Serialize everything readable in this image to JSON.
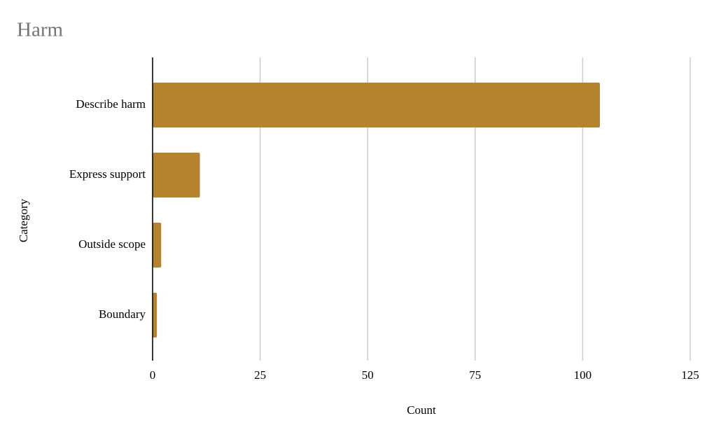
{
  "chart_data": {
    "type": "hbar",
    "title": "Harm",
    "categories": [
      "Describe harm",
      "Express support",
      "Outside scope",
      "Boundary"
    ],
    "values": [
      104,
      11,
      2,
      1
    ],
    "color": "#b5832e",
    "xlim": [
      0,
      125
    ],
    "xticks": [
      0,
      25,
      50,
      75,
      100,
      125
    ],
    "grid": true,
    "x_label": "Count",
    "y_label": "Category"
  }
}
